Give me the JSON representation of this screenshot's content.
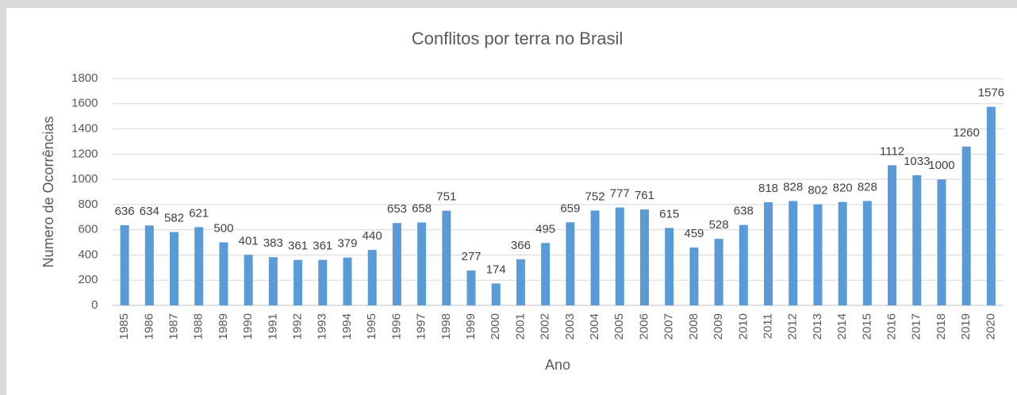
{
  "chart_data": {
    "type": "bar",
    "title": "Conflitos por terra no Brasil",
    "x_label": "Ano",
    "y_label": "Numero de Ocorrências",
    "categories": [
      "1985",
      "1986",
      "1987",
      "1988",
      "1989",
      "1990",
      "1991",
      "1992",
      "1993",
      "1994",
      "1995",
      "1996",
      "1997",
      "1998",
      "1999",
      "2000",
      "2001",
      "2002",
      "2003",
      "2004",
      "2005",
      "2006",
      "2007",
      "2008",
      "2009",
      "2010",
      "2011",
      "2012",
      "2013",
      "2014",
      "2015",
      "2016",
      "2017",
      "2018",
      "2019",
      "2020"
    ],
    "values": [
      636,
      634,
      582,
      621,
      500,
      401,
      383,
      361,
      361,
      379,
      440,
      653,
      658,
      751,
      277,
      174,
      366,
      495,
      659,
      752,
      777,
      761,
      615,
      459,
      528,
      638,
      818,
      828,
      802,
      820,
      828,
      1112,
      1033,
      1000,
      1260,
      1576
    ],
    "color": "#5b9bd5",
    "ylim": [
      0,
      1800
    ],
    "yticks": [
      0,
      200,
      400,
      600,
      800,
      1000,
      1200,
      1400,
      1600,
      1800
    ],
    "grid": true
  }
}
